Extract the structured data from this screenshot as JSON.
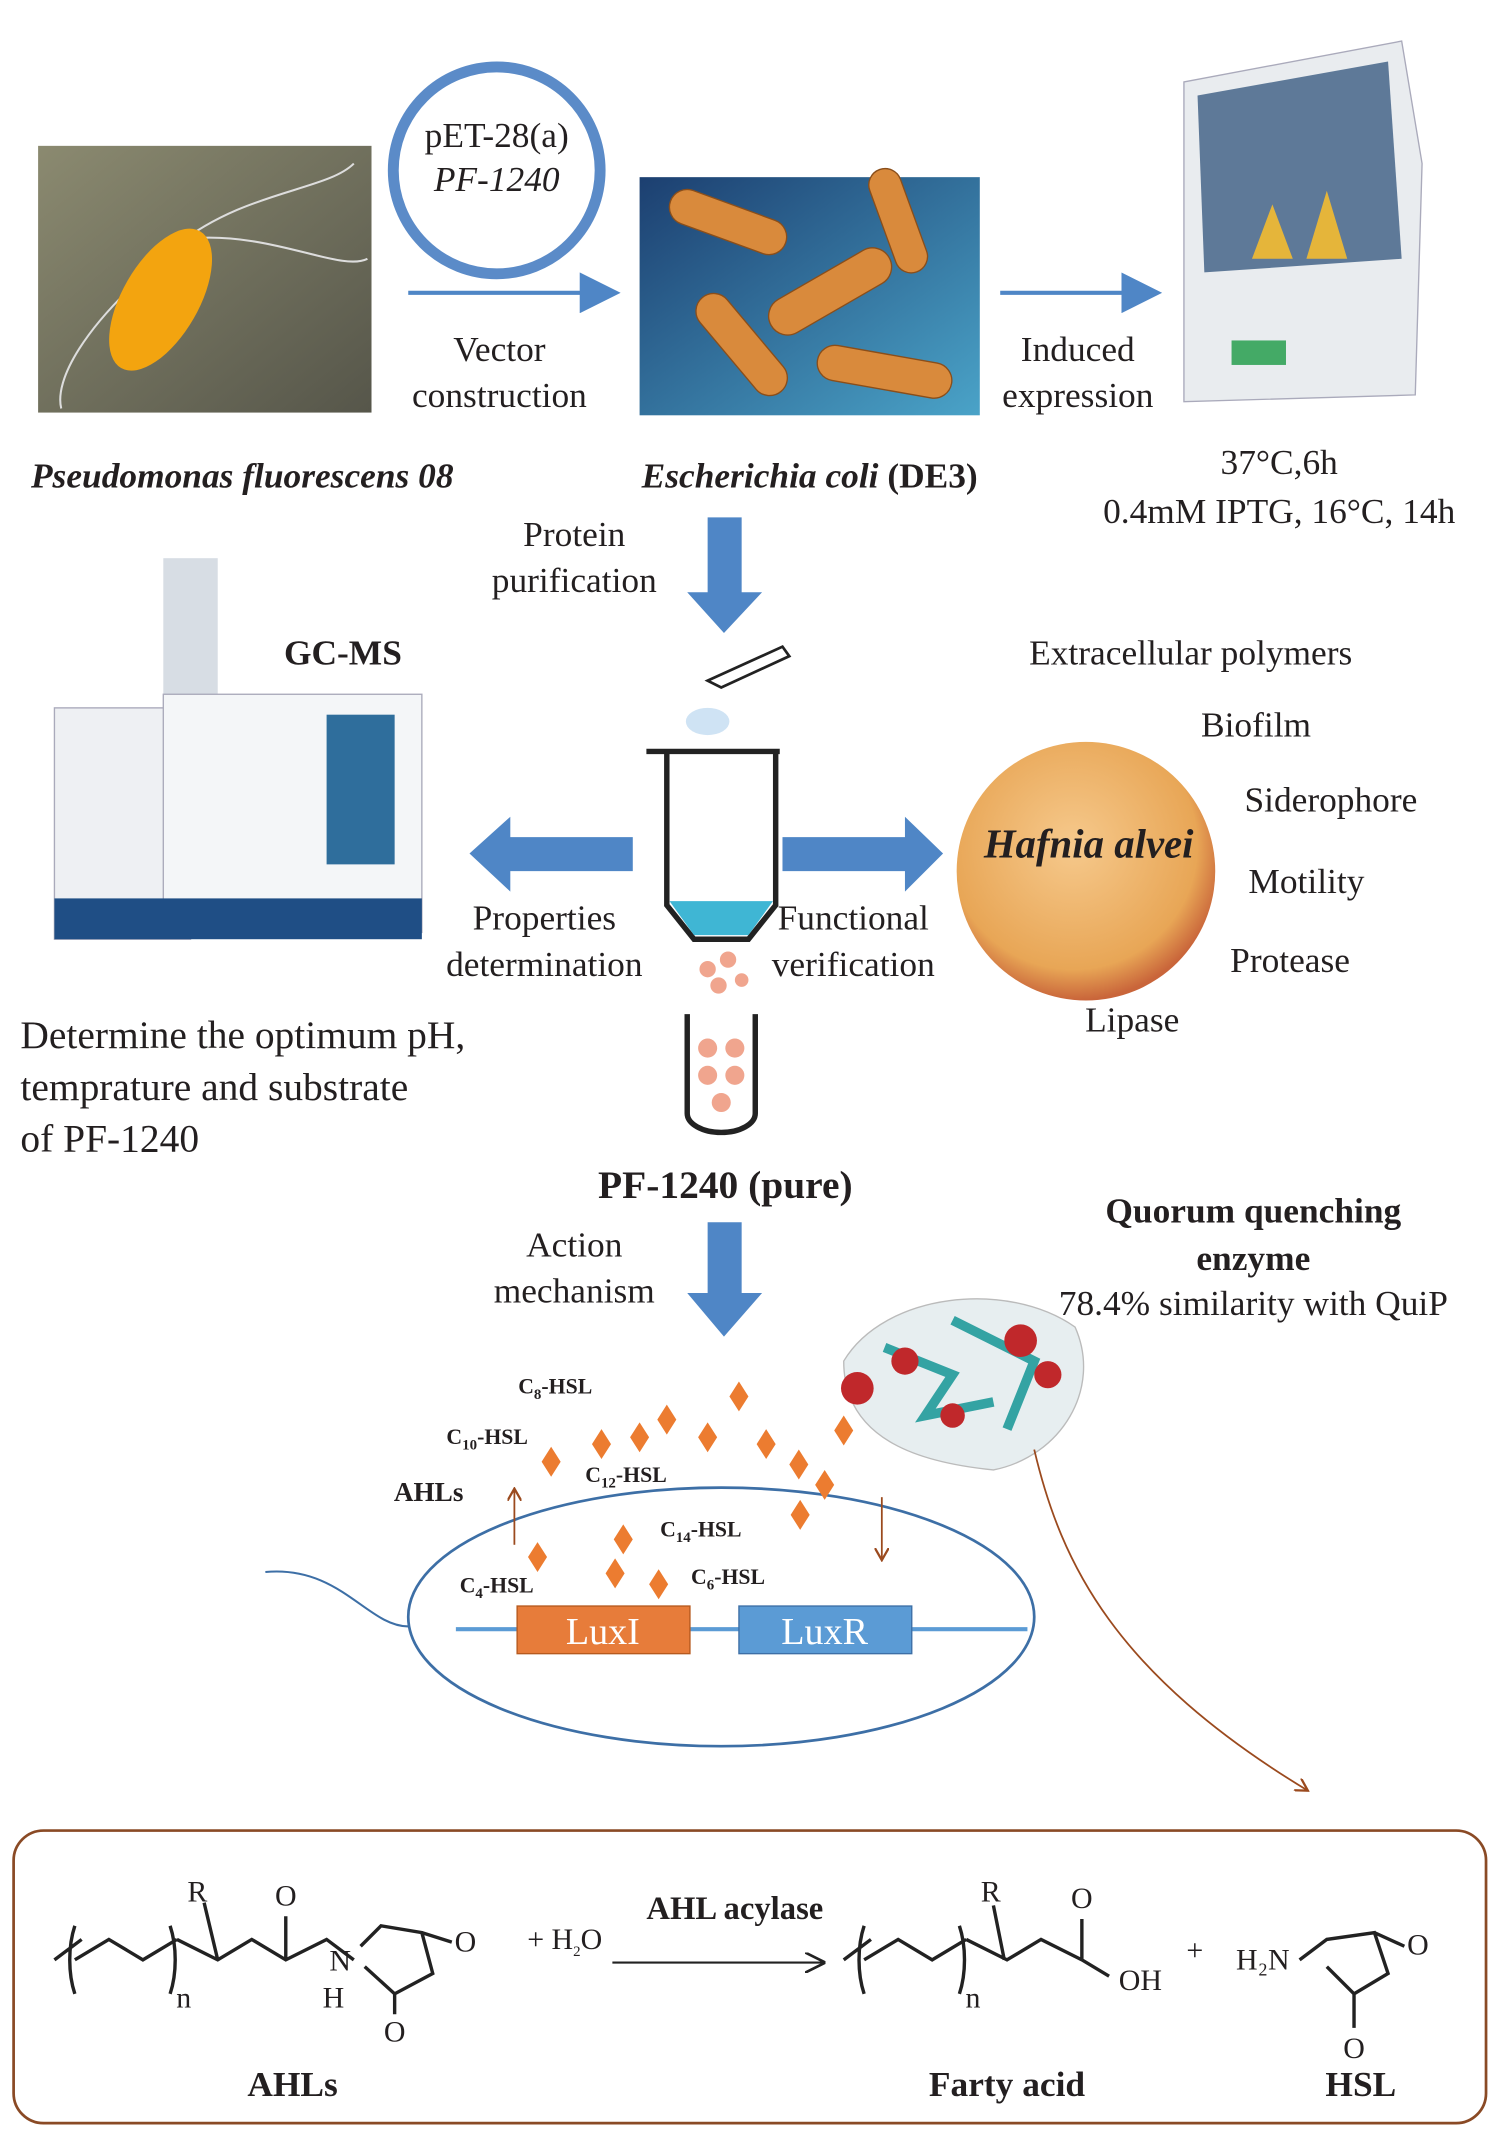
{
  "plasmid": {
    "name": "pET-28(a)",
    "gene": "PF-1240"
  },
  "steps": {
    "vector": [
      "Vector",
      "construction"
    ],
    "induced": [
      "Induced",
      "expression"
    ],
    "purification": [
      "Protein",
      "purification"
    ],
    "properties": [
      "Properties",
      "determination"
    ],
    "functional": [
      "Functional",
      "verification"
    ],
    "action": [
      "Action",
      "mechanism"
    ]
  },
  "organisms": {
    "source": "Pseudomonas fluorescens 08",
    "host": "Escherichia coli",
    "host_strain": "(DE3)",
    "target": "Hafnia alvei"
  },
  "conditions": [
    "37°C,6h",
    "0.4mM IPTG, 16°C, 14h"
  ],
  "instrument": "GC-MS",
  "phenotypes": [
    "Extracellular polymers",
    "Biofilm",
    "Siderophore",
    "Motility",
    "Protease",
    "Lipase"
  ],
  "determine": [
    "Determine the optimum pH,",
    "temprature and substrate",
    "of PF-1240"
  ],
  "product": "PF-1240 (pure)",
  "enzyme": {
    "title": [
      "Quorum quenching",
      "enzyme"
    ],
    "similarity": "78.4% similarity with QuiP"
  },
  "signals": {
    "group": "AHLs",
    "molecules": [
      {
        "main": "C",
        "sub": "8",
        "rest": "-HSL"
      },
      {
        "main": "C",
        "sub": "10",
        "rest": "-HSL"
      },
      {
        "main": "C",
        "sub": "12",
        "rest": "-HSL"
      },
      {
        "main": "C",
        "sub": "14",
        "rest": "-HSL"
      },
      {
        "main": "C",
        "sub": "4",
        "rest": "-HSL"
      },
      {
        "main": "C",
        "sub": "6",
        "rest": "-HSL"
      }
    ],
    "genes": [
      "LuxI",
      "LuxR"
    ]
  },
  "reaction": {
    "plus_water": {
      "main": "+ H",
      "sub": "2",
      "rest": "O"
    },
    "enzyme": "AHL acylase",
    "plus": "+",
    "substrate": "AHLs",
    "product1": "Farty acid",
    "product2": "HSL",
    "atoms_left": [
      "R",
      "O",
      "N",
      "H",
      "n",
      "O",
      "O"
    ],
    "atoms_acid": [
      "R",
      "O",
      "OH",
      "n"
    ],
    "atoms_hsl": [
      "H₂N",
      "O",
      "O"
    ]
  }
}
